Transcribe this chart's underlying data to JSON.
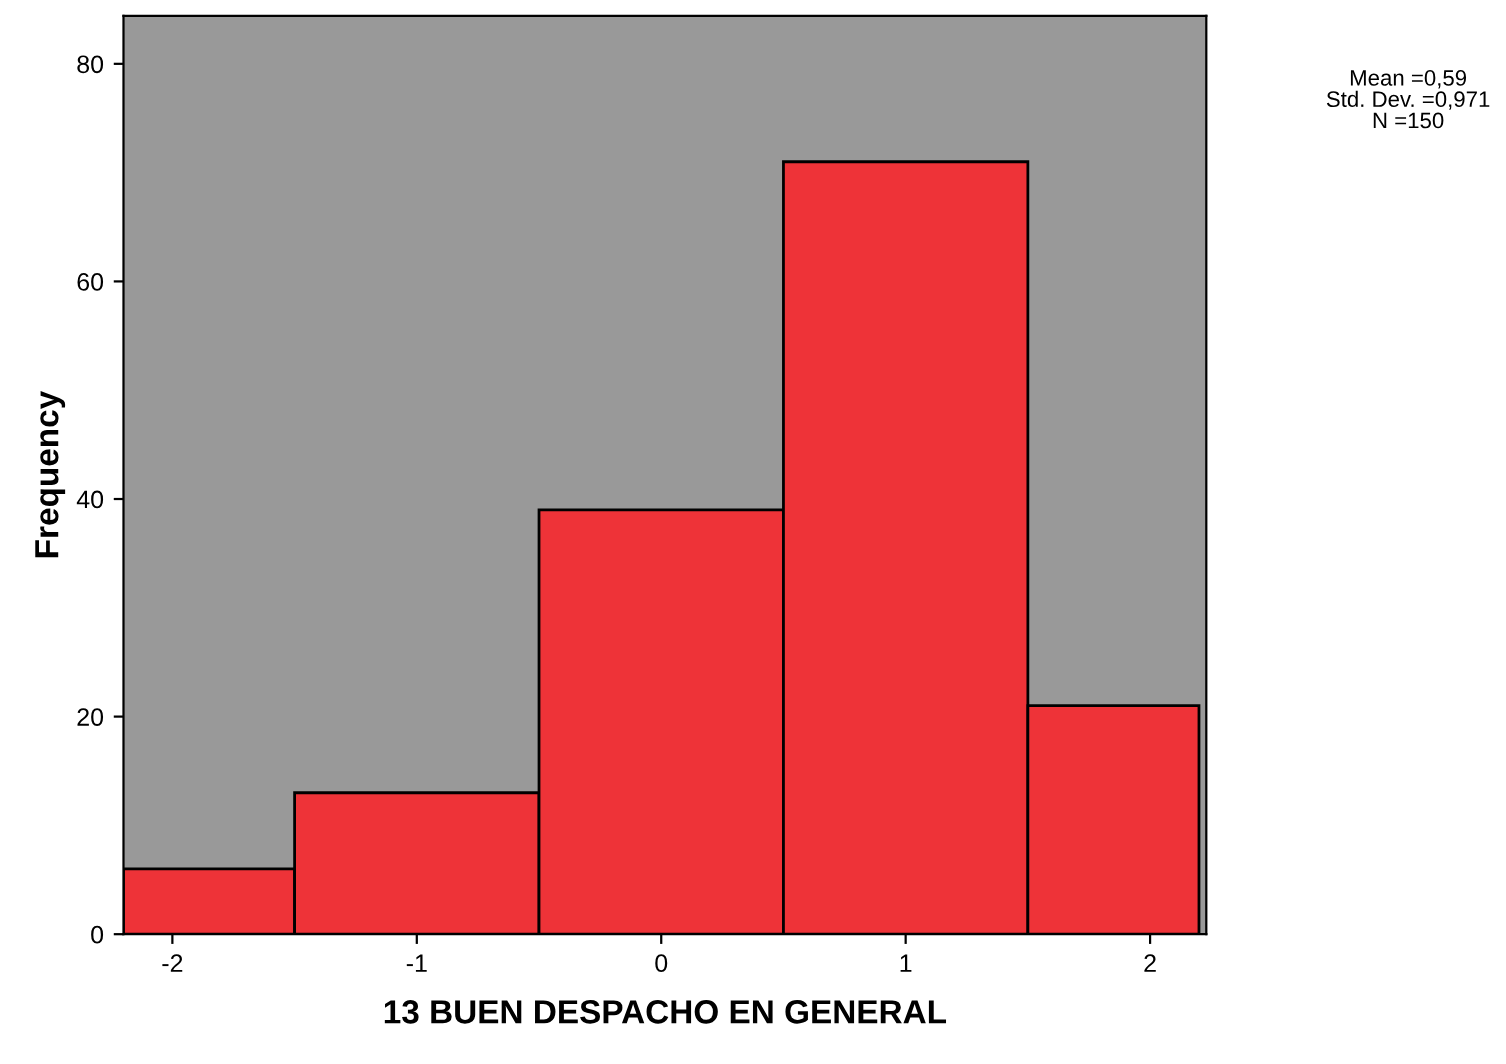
{
  "chart_data": {
    "type": "histogram",
    "xlabel": "13 BUEN DESPACHO EN GENERAL",
    "ylabel": "Frequency",
    "bins": [
      -2.2,
      -1.5,
      -0.5,
      0.5,
      1.5,
      2.2
    ],
    "values": [
      6,
      13,
      39,
      71,
      21
    ],
    "color": "#ee3338",
    "xlim": [
      -2.2,
      2.23
    ],
    "xticks": [
      -2,
      -1,
      0,
      1,
      2
    ],
    "ylim": [
      0,
      84.4
    ],
    "yticks": [
      0,
      20,
      40,
      60,
      80
    ],
    "grid": false,
    "annotations": [
      "Mean =0,59",
      "Std. Dev. =0,971",
      "N =150"
    ]
  }
}
